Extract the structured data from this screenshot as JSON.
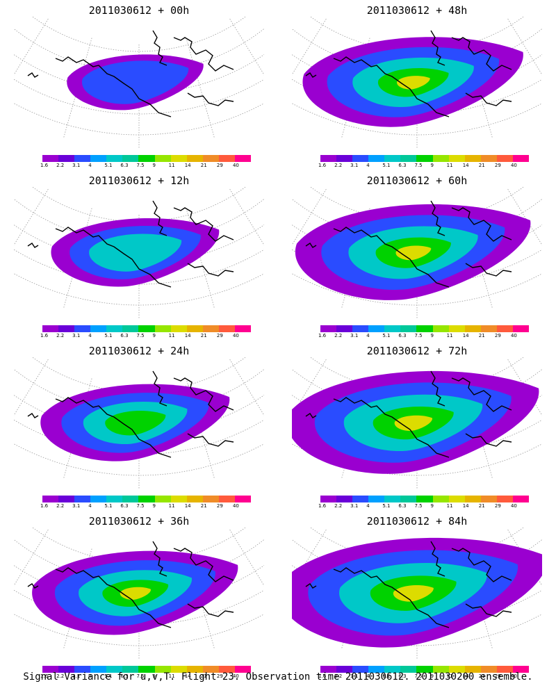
{
  "panels": [
    {
      "title": "2011030612 + 00h",
      "level": 0.15
    },
    {
      "title": "2011030612 + 48h",
      "level": 0.55
    },
    {
      "title": "2011030612 + 12h",
      "level": 0.3
    },
    {
      "title": "2011030612 + 60h",
      "level": 0.62
    },
    {
      "title": "2011030612 + 24h",
      "level": 0.4
    },
    {
      "title": "2011030612 + 72h",
      "level": 0.7
    },
    {
      "title": "2011030612 + 36h",
      "level": 0.48
    },
    {
      "title": "2011030612 + 84h",
      "level": 0.78
    }
  ],
  "colorbar": {
    "labels": [
      "1.6",
      "2.2",
      "3.1",
      "4",
      "5.1",
      "6.3",
      "7.5",
      "9",
      "11",
      "14",
      "21",
      "29",
      "40"
    ],
    "colors": [
      "#9a00d0",
      "#6a00d8",
      "#2a4cff",
      "#00a0ff",
      "#00c8c8",
      "#00c89a",
      "#00d200",
      "#96e600",
      "#dcdc00",
      "#e6b400",
      "#f08c28",
      "#ff5a3c",
      "#ff0090"
    ]
  },
  "footer": "Signal Variance for u,v,T. Flight 23. Observation time 2011030612. 2011030200 ensemble."
}
